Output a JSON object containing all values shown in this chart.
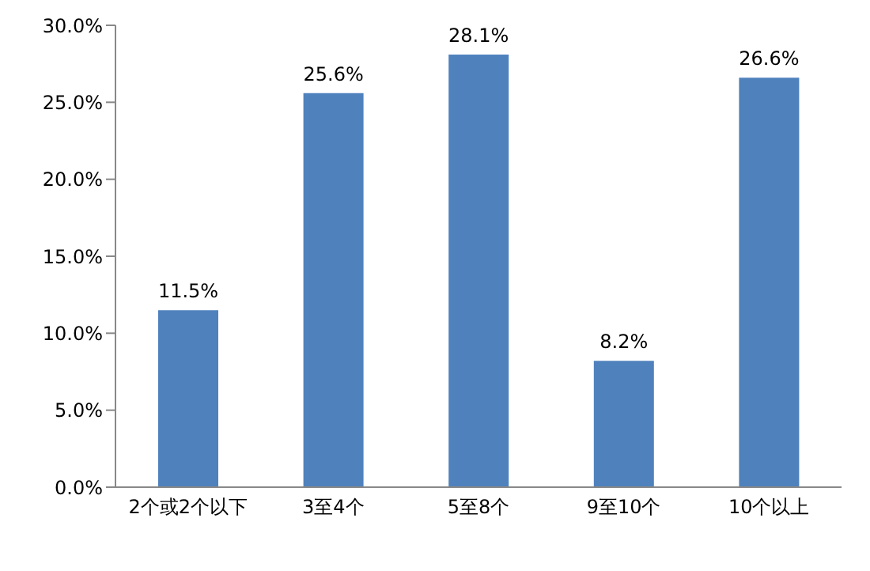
{
  "chart_data": {
    "type": "bar",
    "categories": [
      "2个或2个以下",
      "3至4个",
      "5至8个",
      "9至10个",
      "10个以上"
    ],
    "values": [
      11.5,
      25.6,
      28.1,
      8.2,
      26.6
    ],
    "value_labels": [
      "11.5%",
      "25.6%",
      "28.1%",
      "8.2%",
      "26.6%"
    ],
    "color": "#4f81bd",
    "ylim": [
      0,
      30
    ],
    "yticks": [
      {
        "value": 0,
        "label": "0.0%"
      },
      {
        "value": 5,
        "label": "5.0%"
      },
      {
        "value": 10,
        "label": "10.0%"
      },
      {
        "value": 15,
        "label": "15.0%"
      },
      {
        "value": 20,
        "label": "20.0%"
      },
      {
        "value": 25,
        "label": "25.0%"
      },
      {
        "value": 30,
        "label": "30.0%"
      }
    ],
    "grid": false
  }
}
